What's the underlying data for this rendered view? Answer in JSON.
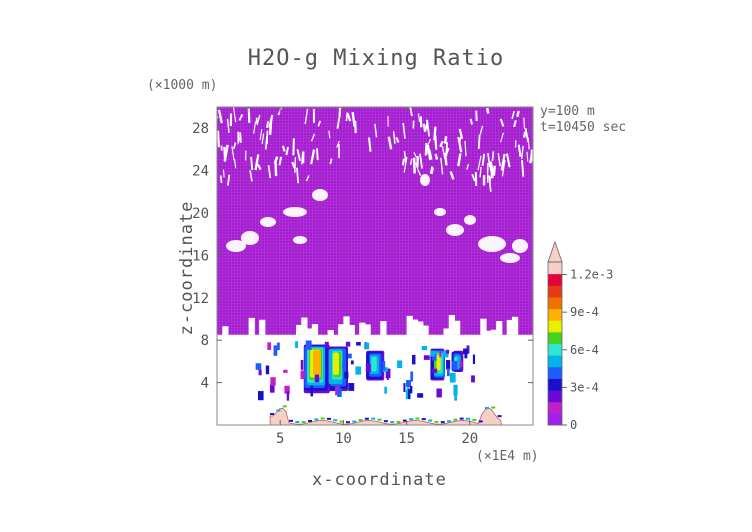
{
  "chart_data": {
    "type": "heatmap",
    "title": "H2O-g Mixing Ratio",
    "xlabel": "x-coordinate",
    "ylabel": "z-coordinate",
    "x_unit": "(×1E4 m)",
    "y_unit": "(×1000 m)",
    "info_lines": [
      "y=100 m",
      "t=10450 sec"
    ],
    "xlim": [
      0,
      25
    ],
    "ylim": [
      0,
      30
    ],
    "xticks": [
      5,
      10,
      15,
      20
    ],
    "yticks": [
      4,
      8,
      12,
      16,
      20,
      24,
      28
    ],
    "colorbar": {
      "min": 0,
      "max": 0.0013,
      "tick_values": [
        0,
        0.0003,
        0.0006,
        0.0009,
        0.0012
      ],
      "tick_labels": [
        "0",
        "3e-4",
        "6e-4",
        "9e-4",
        "1.2e-3"
      ],
      "colors": [
        "#a020f0",
        "#c020c8",
        "#6a0ad8",
        "#1a10c8",
        "#1e5cff",
        "#00b4e8",
        "#30e6d2",
        "#44d21e",
        "#e8f000",
        "#ffb000",
        "#f07000",
        "#e83a14",
        "#e6003c",
        "#f6d0c8"
      ]
    },
    "regions": {
      "terrain_color": "#f5d0c5",
      "background_value": "0",
      "moist_layer_z_max": 8.5,
      "dry_upper_region": [
        0,
        28
      ],
      "convective_cores_x": [
        7.8,
        9.5,
        12.5,
        17.5,
        19
      ]
    }
  }
}
